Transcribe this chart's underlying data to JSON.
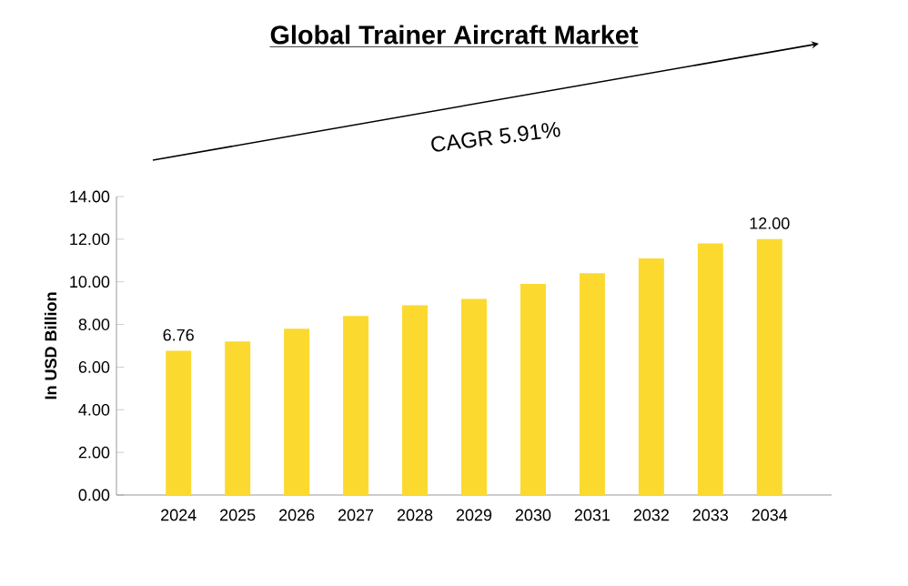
{
  "chart_data": {
    "type": "bar",
    "title": "Global Trainer Aircraft Market",
    "ylabel": "In USD Billion",
    "categories": [
      "2024",
      "2025",
      "2026",
      "2027",
      "2028",
      "2029",
      "2030",
      "2031",
      "2032",
      "2033",
      "2034"
    ],
    "values": [
      6.76,
      7.2,
      7.8,
      8.4,
      8.9,
      9.2,
      9.9,
      10.4,
      11.1,
      11.8,
      12.0
    ],
    "value_labels": [
      "6.76",
      null,
      null,
      null,
      null,
      null,
      null,
      null,
      null,
      null,
      "12.00"
    ],
    "color": "#fcd92f",
    "ylim": [
      0,
      14
    ],
    "yticks": [
      {
        "value": 0,
        "label": "0.00"
      },
      {
        "value": 2,
        "label": "2.00"
      },
      {
        "value": 4,
        "label": "4.00"
      },
      {
        "value": 6,
        "label": "6.00"
      },
      {
        "value": 8,
        "label": "8.00"
      },
      {
        "value": 10,
        "label": "10.00"
      },
      {
        "value": 12,
        "label": "12.00"
      },
      {
        "value": 14,
        "label": "14.00"
      }
    ],
    "grid": false,
    "annotations": [
      "CAGR 5.91%"
    ]
  }
}
